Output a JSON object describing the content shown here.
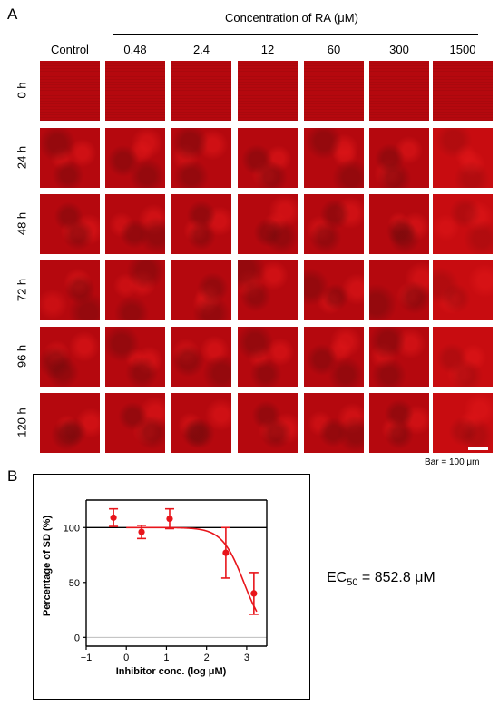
{
  "panel_a": {
    "letter": "A",
    "concentration_title": "Concentration of RA (μM)",
    "columns": [
      "Control",
      "0.48",
      "2.4",
      "12",
      "60",
      "300",
      "1500"
    ],
    "rows": [
      "0 h",
      "24 h",
      "48 h",
      "72 h",
      "96 h",
      "120 h"
    ],
    "scale_bar_label": "Bar = 100 μm"
  },
  "panel_b": {
    "letter": "B",
    "ec50_prefix": "EC",
    "ec50_sub": "50",
    "ec50_value": " = 852.8 μM"
  },
  "chart_data": {
    "type": "scatter",
    "xlabel": "Inhibitor conc. (log μM)",
    "ylabel": "Percentage of SD (%)",
    "xlim": [
      -1,
      3.5
    ],
    "ylim": [
      -8,
      125
    ],
    "xticks": [
      "−1",
      "0",
      "1",
      "2",
      "3"
    ],
    "xtick_values": [
      -1,
      0,
      1,
      2,
      3
    ],
    "yticks": [
      "0",
      "50",
      "100"
    ],
    "ytick_values": [
      0,
      50,
      100
    ],
    "points": [
      {
        "x": -0.32,
        "y": 109,
        "err": 8
      },
      {
        "x": 0.38,
        "y": 96,
        "err": 6
      },
      {
        "x": 1.08,
        "y": 108,
        "err": 9
      },
      {
        "x": 2.48,
        "y": 77,
        "err": 23
      },
      {
        "x": 3.18,
        "y": 40,
        "err": 19
      }
    ],
    "curve": {
      "top": 100,
      "bottom": 0,
      "log_ec50": 2.93,
      "hill": -1.6
    },
    "reference_lines": [
      100,
      0
    ],
    "colors": {
      "points": "#e8151b",
      "fit": "#e8151b",
      "ref_100": "#000000",
      "ref_0": "#bdbdbd"
    }
  },
  "tile_colors": {
    "base": "#b5080e",
    "bright": "#e01618",
    "dark": "#6e0a0c"
  }
}
